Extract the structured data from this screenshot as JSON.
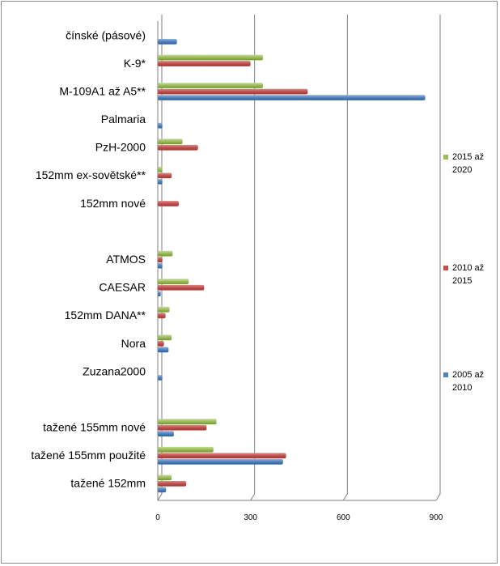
{
  "chart_data": {
    "type": "bar",
    "orientation": "horizontal",
    "categories": [
      "čínské (pásové)",
      "K-9*",
      "M-109A1 až A5**",
      "Palmaria",
      "PzH-2000",
      "152mm ex-sovětské**",
      "152mm nové",
      "",
      "ATMOS",
      "CAESAR",
      "152mm DANA**",
      "Nora",
      "Zuzana2000",
      "",
      "tažené 155mm nové",
      "tažené 155mm použité",
      "tažené 152mm"
    ],
    "series": [
      {
        "name": "2015 až 2020",
        "color": "#9bbb59",
        "values": [
          0,
          340,
          340,
          0,
          80,
          15,
          0,
          0,
          48,
          100,
          38,
          45,
          0,
          0,
          190,
          180,
          45
        ]
      },
      {
        "name": "2010 až 2015",
        "color": "#c0504d",
        "values": [
          0,
          300,
          485,
          0,
          130,
          45,
          68,
          0,
          15,
          150,
          25,
          20,
          0,
          0,
          158,
          415,
          92
        ]
      },
      {
        "name": "2005 až 2010",
        "color": "#4f81bd",
        "values": [
          62,
          0,
          865,
          15,
          0,
          15,
          0,
          0,
          15,
          10,
          0,
          35,
          15,
          0,
          52,
          405,
          27
        ]
      }
    ],
    "xlim": [
      0,
      900
    ],
    "xticks": [
      0,
      300,
      600,
      900
    ],
    "grid": true,
    "legend_position": "right",
    "title": "",
    "xlabel": "",
    "ylabel": ""
  }
}
